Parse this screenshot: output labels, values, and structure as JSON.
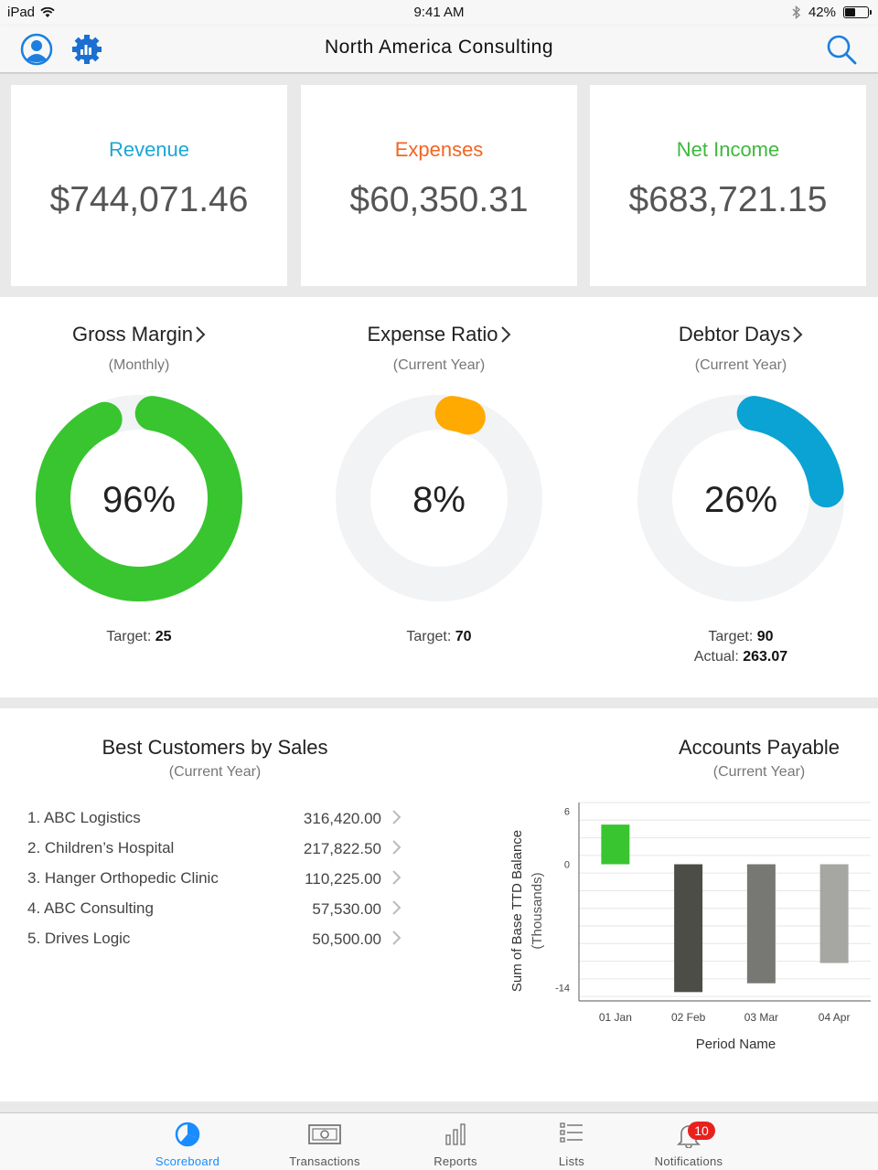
{
  "status_bar": {
    "device": "iPad",
    "time": "9:41 AM",
    "battery": "42%"
  },
  "nav": {
    "title": "North America Consulting",
    "left_icons": [
      "user-icon",
      "gear-chart-icon"
    ],
    "right_icon": "search-icon"
  },
  "kpis": [
    {
      "label": "Revenue",
      "value": "$744,071.46",
      "color": "#1ba6d6"
    },
    {
      "label": "Expenses",
      "value": "$60,350.31",
      "color": "#f26522"
    },
    {
      "label": "Net Income",
      "value": "$683,721.15",
      "color": "#3db83d"
    }
  ],
  "gauges": [
    {
      "title": "Gross Margin",
      "subtitle": "(Monthly)",
      "center": "96%",
      "fraction": 0.96,
      "color": "#38c52f",
      "target_label": "Target:",
      "target_value": "25",
      "actual_label": "",
      "actual_value": ""
    },
    {
      "title": "Expense Ratio",
      "subtitle": "(Current Year)",
      "center": "8%",
      "fraction": 0.08,
      "color": "#ffaa00",
      "target_label": "Target:",
      "target_value": "70",
      "actual_label": "",
      "actual_value": ""
    },
    {
      "title": "Debtor Days",
      "subtitle": "(Current Year)",
      "center": "26%",
      "fraction": 0.26,
      "color": "#0aa3d3",
      "target_label": "Target:",
      "target_value": "90",
      "actual_label": "Actual:",
      "actual_value": "263.07"
    }
  ],
  "customers": {
    "title": "Best Customers by Sales",
    "subtitle": "(Current Year)",
    "rows": [
      {
        "name": "1. ABC Logistics",
        "amount": "316,420.00"
      },
      {
        "name": "2. Children’s Hospital",
        "amount": "217,822.50"
      },
      {
        "name": "3. Hanger Orthopedic Clinic",
        "amount": "110,225.00"
      },
      {
        "name": "4. ABC Consulting",
        "amount": "57,530.00"
      },
      {
        "name": "5. Drives Logic",
        "amount": "50,500.00"
      }
    ]
  },
  "payables": {
    "title": "Accounts Payable",
    "subtitle": "(Current Year)"
  },
  "chart_data": {
    "type": "bar",
    "title": "Accounts Payable",
    "subtitle": "(Current Year)",
    "categories": [
      "01 Jan",
      "02 Feb",
      "03 Mar",
      "04 Apr"
    ],
    "values": [
      4.5,
      -14.5,
      -13.5,
      -11.2
    ],
    "bar_colors": [
      "#38c52f",
      "#4d4d47",
      "#777773",
      "#a6a6a2"
    ],
    "xlabel": "Period Name",
    "ylabel": "Sum of Base TTD Balance",
    "ylabel2": "(Thousands)",
    "ylim": [
      -15.5,
      7
    ],
    "yticks": [
      6,
      0,
      -14
    ],
    "grid": true
  },
  "tabs": [
    {
      "label": "Scoreboard",
      "icon": "pie-chart-icon",
      "active": true
    },
    {
      "label": "Transactions",
      "icon": "money-icon",
      "active": false
    },
    {
      "label": "Reports",
      "icon": "bar-chart-icon",
      "active": false
    },
    {
      "label": "Lists",
      "icon": "list-icon",
      "active": false
    },
    {
      "label": "Notifications",
      "icon": "bell-icon",
      "active": false,
      "badge": "10"
    }
  ]
}
